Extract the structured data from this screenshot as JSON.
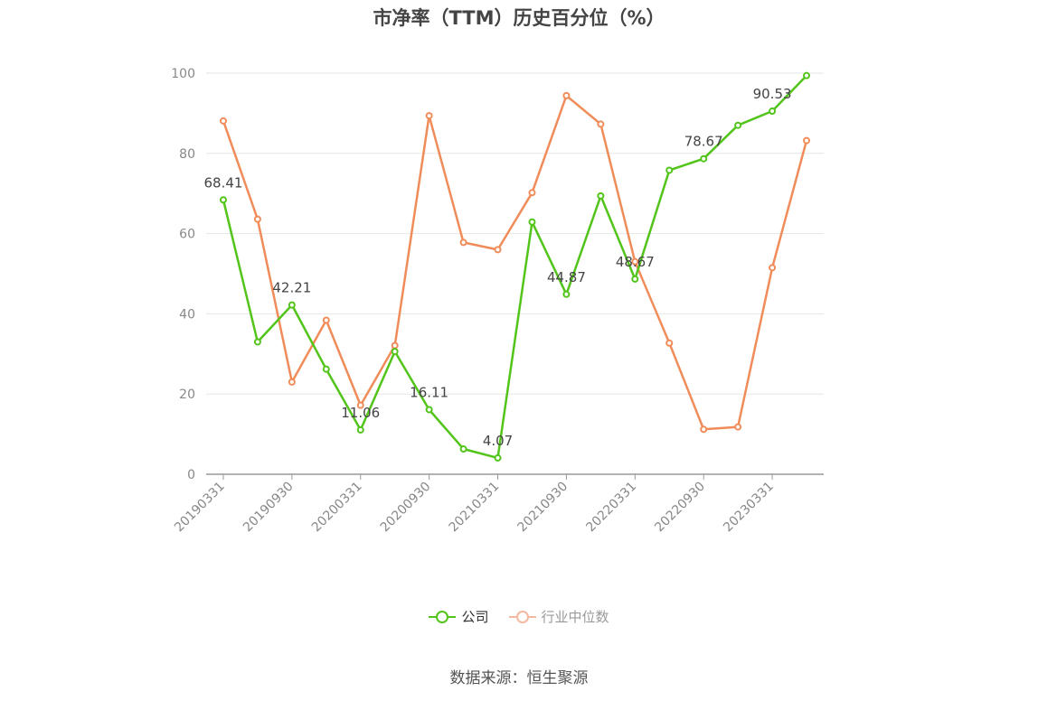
{
  "title": "市净率（TTM）历史百分位（%）",
  "source": "数据来源：恒生聚源",
  "colors": {
    "company": "#52c41a",
    "industry": "#f08c5a",
    "grid": "#e6e6e6",
    "axis": "#999999"
  },
  "legend": [
    {
      "label": "公司",
      "color": "#52c41a",
      "dim": false
    },
    {
      "label": "行业中位数",
      "color": "#f5b8a0",
      "dim": true
    }
  ],
  "chart_data": {
    "type": "line",
    "title": "市净率（TTM）历史百分位（%）",
    "x": [
      "20190331",
      "20190630",
      "20190930",
      "20191231",
      "20200331",
      "20200630",
      "20200930",
      "20201231",
      "20210331",
      "20210630",
      "20210930",
      "20211231",
      "20220331",
      "20220630",
      "20220930",
      "20221231",
      "20230331",
      "20230630"
    ],
    "x_tick_labels": [
      "20190331",
      "20190930",
      "20200331",
      "20200930",
      "20210331",
      "20210930",
      "20220331",
      "20220930",
      "20230331"
    ],
    "ylim": [
      0,
      100
    ],
    "yticks": [
      0,
      20,
      40,
      60,
      80,
      100
    ],
    "grid": true,
    "legend_position": "bottom-center",
    "series": [
      {
        "name": "公司",
        "color": "#52c41a",
        "values": [
          68.41,
          33.0,
          42.21,
          26.2,
          11.06,
          30.6,
          16.11,
          6.3,
          4.07,
          62.9,
          44.87,
          69.4,
          48.67,
          75.8,
          78.67,
          87.0,
          90.53,
          99.4
        ],
        "labels": {
          "0": "68.41",
          "2": "42.21",
          "4": "11.06",
          "6": "16.11",
          "8": "4.07",
          "10": "44.87",
          "12": "48.67",
          "14": "78.67",
          "16": "90.53"
        }
      },
      {
        "name": "行业中位数",
        "color": "#f08c5a",
        "values": [
          88.1,
          63.6,
          23.0,
          38.4,
          17.2,
          32.1,
          89.4,
          57.8,
          56.0,
          70.2,
          94.4,
          87.3,
          53.0,
          32.7,
          11.2,
          11.8,
          51.5,
          83.2
        ]
      }
    ]
  }
}
